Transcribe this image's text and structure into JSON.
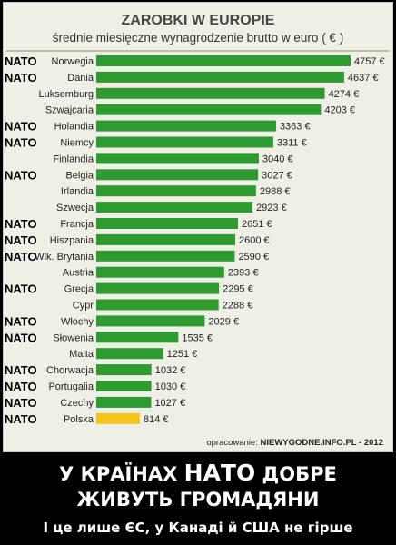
{
  "chart_data": {
    "type": "bar",
    "orientation": "horizontal",
    "title": "ZAROBKI W EUROPIE",
    "subtitle": "średnie miesięczne wynagrodzenie brutto w euro ( € )",
    "value_suffix": " €",
    "categories": [
      "Norwegia",
      "Dania",
      "Luksemburg",
      "Szwajcaria",
      "Holandia",
      "Niemcy",
      "Finlandia",
      "Belgia",
      "Irlandia",
      "Szwecja",
      "Francja",
      "Hiszpania",
      "Wlk. Brytania",
      "Austria",
      "Grecja",
      "Cypr",
      "Włochy",
      "Słowenia",
      "Malta",
      "Chorwacja",
      "Portugalia",
      "Czechy",
      "Polska"
    ],
    "values": [
      4757,
      4637,
      4274,
      4203,
      3363,
      3311,
      3040,
      3027,
      2988,
      2923,
      2651,
      2600,
      2590,
      2393,
      2295,
      2288,
      2029,
      1535,
      1251,
      1032,
      1030,
      1027,
      814
    ],
    "nato_member": [
      true,
      true,
      false,
      false,
      true,
      true,
      false,
      true,
      false,
      false,
      true,
      true,
      true,
      false,
      true,
      false,
      true,
      true,
      false,
      true,
      true,
      true,
      true
    ],
    "nato_label": "NATO",
    "colors": {
      "bar": "#2f9a2f",
      "highlight": "#f4c51c",
      "highlight_category": "Polska"
    },
    "grid": false,
    "legend": "none"
  },
  "credit": {
    "prefix": "opracowanie:",
    "source": "NIEWYGODNE.INFO.PL - 2012"
  },
  "footer": {
    "line1_pre": "У КРАЇНАХ ",
    "line1_nato": "НАТО",
    "line1_post": " ДОБРЕ",
    "line2": "ЖИВУТЬ ГРОМАДЯНИ",
    "line3": "І це лише ЄС, у Канаді й США не гірше"
  }
}
